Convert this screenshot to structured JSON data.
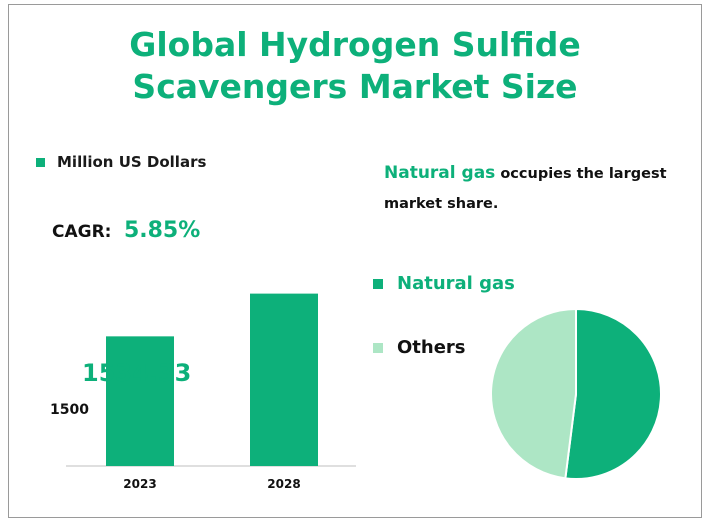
{
  "title_line1": "Global Hydrogen Sulfide",
  "title_line2": "Scavengers  Market Size",
  "unit_legend": "Million US Dollars",
  "cagr_label": "CAGR:",
  "cagr_value": "5.85%",
  "insight_highlight": "Natural gas",
  "insight_text": " occupies the largest market share.",
  "colors": {
    "accent": "#0db07a",
    "light": "#ade6c5",
    "text": "#111111"
  },
  "chart_data": [
    {
      "type": "bar",
      "categories": [
        "2023",
        "2028"
      ],
      "values": [
        1534.33,
        2040
      ],
      "data_labels": [
        "1534.33",
        ""
      ],
      "ytick_label": "1500",
      "color": "#0db07a"
    },
    {
      "type": "pie",
      "labels": [
        "Natural gas",
        "Others"
      ],
      "values": [
        52,
        48
      ],
      "colors": [
        "#0db07a",
        "#ade6c5"
      ],
      "legend_position": "left"
    }
  ]
}
